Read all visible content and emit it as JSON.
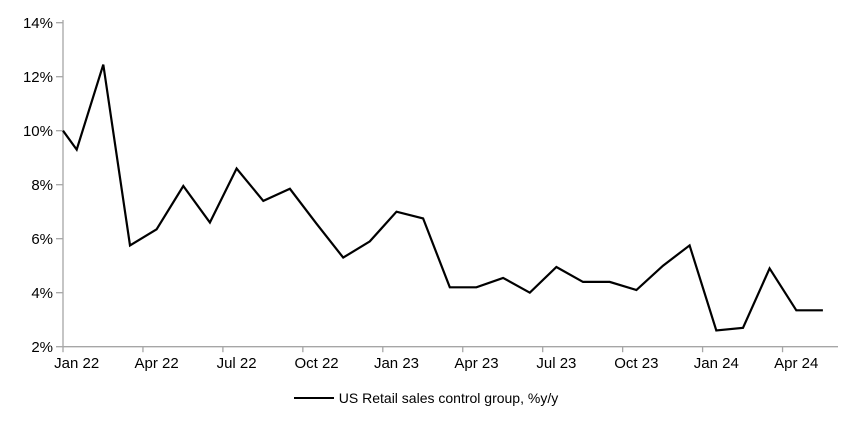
{
  "chart_data": {
    "type": "line",
    "title": "",
    "legend_label": "US Retail sales control group, %y/y",
    "legend_position": "bottom-center",
    "grid": "off",
    "x": [
      "Jan 22",
      "Feb 22",
      "Mar 22",
      "Apr 22",
      "May 22",
      "Jun 22",
      "Jul 22",
      "Aug 22",
      "Sep 22",
      "Oct 22",
      "Nov 22",
      "Dec 22",
      "Jan 23",
      "Feb 23",
      "Mar 23",
      "Apr 23",
      "May 23",
      "Jun 23",
      "Jul 23",
      "Aug 23",
      "Sep 23",
      "Oct 23",
      "Nov 23",
      "Dec 23",
      "Jan 24",
      "Feb 24",
      "Mar 24",
      "Apr 24",
      "May 24"
    ],
    "series": [
      {
        "name": "US Retail sales control group, %y/y",
        "values": [
          9.3,
          12.45,
          5.75,
          6.35,
          7.95,
          6.6,
          8.6,
          7.4,
          7.85,
          6.55,
          5.3,
          5.9,
          7.0,
          6.75,
          4.2,
          4.2,
          4.55,
          4.0,
          4.95,
          4.4,
          4.4,
          4.1,
          5.0,
          5.75,
          2.6,
          2.7,
          4.9,
          3.35,
          3.35
        ]
      }
    ],
    "lead_in_value_at_left_edge": 10.0,
    "x_tick_labels": [
      "Jan 22",
      "Apr 22",
      "Jul 22",
      "Oct 22",
      "Jan 23",
      "Apr 23",
      "Jul 23",
      "Oct 23",
      "Jan 24",
      "Apr 24"
    ],
    "x_tick_interval_months": 3,
    "y_tick_labels": [
      "14%",
      "12%",
      "10%",
      "8%",
      "6%",
      "4%",
      "2%"
    ],
    "y_tick_values": [
      14,
      12,
      10,
      8,
      6,
      4,
      2
    ],
    "ylim": [
      2,
      14
    ],
    "line_color": "#000000",
    "axis_color": "#a6a6a6",
    "label_color": "#000000",
    "background": "#ffffff"
  }
}
